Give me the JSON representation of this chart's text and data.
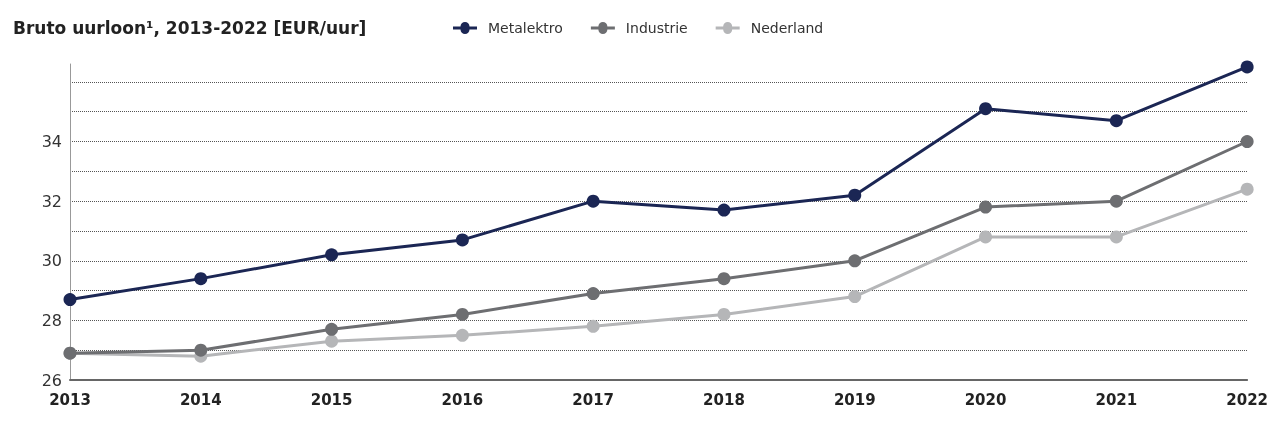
{
  "chart_data": {
    "type": "line",
    "title": "Bruto uurloon¹, 2013-2022 [EUR/uur]",
    "categories": [
      "2013",
      "2014",
      "2015",
      "2016",
      "2017",
      "2018",
      "2019",
      "2020",
      "2021",
      "2022"
    ],
    "series": [
      {
        "name": "Metalektro",
        "color": "#1b2654",
        "values": [
          28.7,
          29.4,
          30.2,
          30.7,
          32.0,
          31.7,
          32.2,
          35.1,
          34.7,
          36.5
        ]
      },
      {
        "name": "Industrie",
        "color": "#6d6e71",
        "values": [
          26.9,
          27.0,
          27.7,
          28.2,
          28.9,
          29.4,
          30.0,
          31.8,
          32.0,
          34.0
        ]
      },
      {
        "name": "Nederland",
        "color": "#b5b6b8",
        "values": [
          26.9,
          26.8,
          27.3,
          27.5,
          27.8,
          28.2,
          28.8,
          30.8,
          30.8,
          32.4
        ]
      }
    ],
    "ylim": [
      26,
      36.6
    ],
    "yticks": [
      26,
      {
        "value": 27,
        "label": null
      },
      28,
      {
        "value": 29,
        "label": null
      },
      30,
      {
        "value": 31,
        "label": null
      },
      32,
      {
        "value": 33,
        "label": null
      },
      34,
      {
        "value": 35,
        "label": null
      },
      {
        "value": 36,
        "label": null
      }
    ],
    "grid": "y",
    "legend": "top",
    "marker": "circle",
    "line_style": "solid"
  }
}
